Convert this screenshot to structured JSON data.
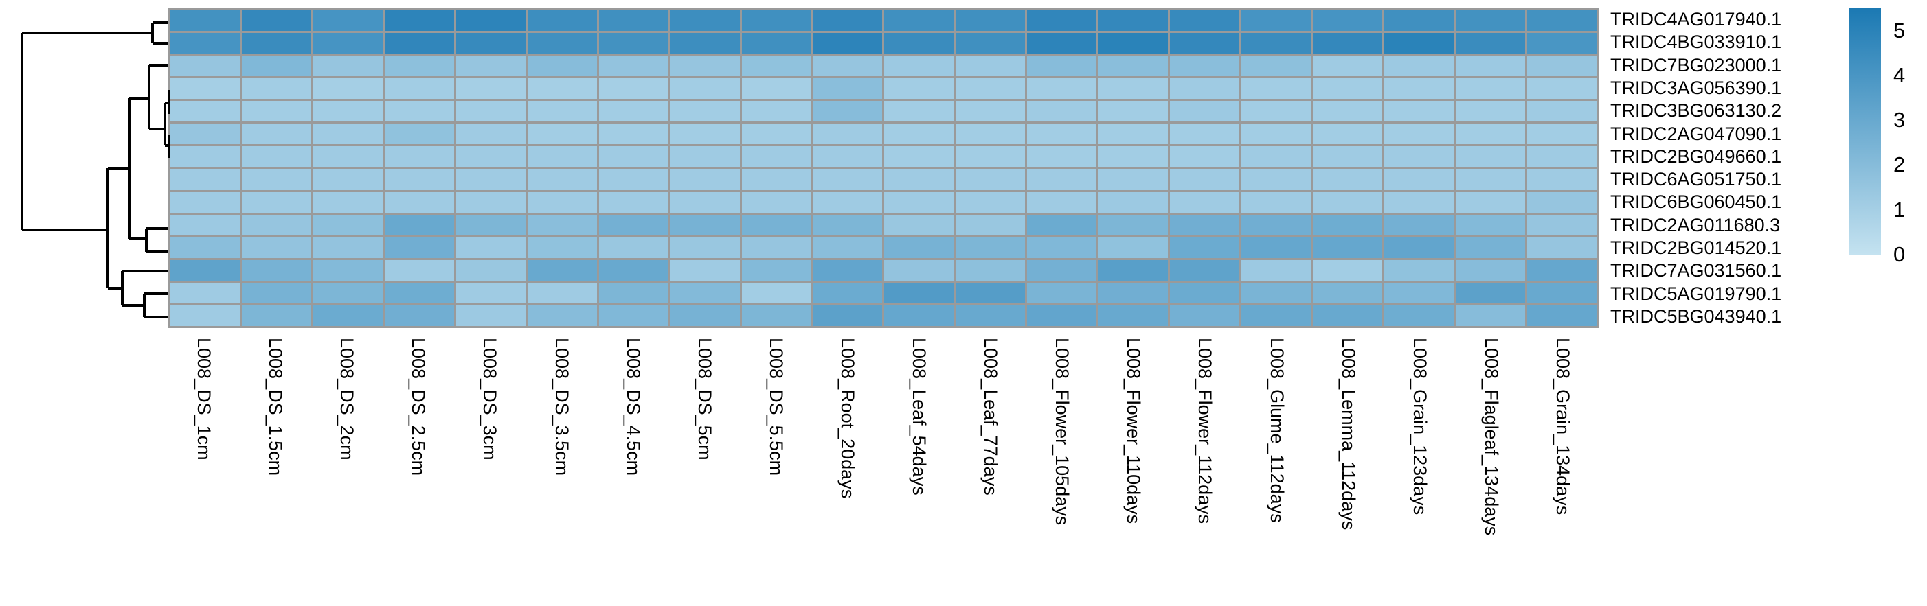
{
  "figure": {
    "background": "#ffffff",
    "grid_color": "#9a9a9a",
    "dendrogram_color": "#000000"
  },
  "chart_data": {
    "type": "heatmap",
    "title": "",
    "xlabel": "",
    "ylabel": "",
    "legend_position": "right",
    "grid": true,
    "rows": [
      "TRIDC4AG017940.1",
      "TRIDC4BG033910.1",
      "TRIDC7BG023000.1",
      "TRIDC3AG056390.1",
      "TRIDC3BG063130.2",
      "TRIDC2AG047090.1",
      "TRIDC2BG049660.1",
      "TRIDC6AG051750.1",
      "TRIDC6BG060450.1",
      "TRIDC2AG011680.3",
      "TRIDC2BG014520.1",
      "TRIDC7AG031560.1",
      "TRIDC5AG019790.1",
      "TRIDC5BG043940.1"
    ],
    "columns": [
      "L008_DS_1cm",
      "L008_DS_1.5cm",
      "L008_DS_2cm",
      "L008_DS_2.5cm",
      "L008_DS_3cm",
      "L008_DS_3.5cm",
      "L008_DS_4.5cm",
      "L008_DS_5cm",
      "L008_DS_5.5cm",
      "L008_Root_20days",
      "L008_Leaf_54days",
      "L008_Leaf_77days",
      "L008_Flower_105days",
      "L008_Flower_110days",
      "L008_Flower_112days",
      "L008_Glume_112days",
      "L008_Lemma_112days",
      "L008_Grain_123days",
      "L008_Flagleaf_134days",
      "L008_Grain_134days"
    ],
    "matrix": [
      [
        4.2,
        4.7,
        4.1,
        4.9,
        4.9,
        4.4,
        4.3,
        4.4,
        4.3,
        4.7,
        4.3,
        4.3,
        4.8,
        4.7,
        4.6,
        4.1,
        4.1,
        4.3,
        4.2,
        4.2
      ],
      [
        4.1,
        4.5,
        4.1,
        4.8,
        4.6,
        4.3,
        4.2,
        4.4,
        4.3,
        4.9,
        4.5,
        4.3,
        4.9,
        5.0,
        4.7,
        4.5,
        4.7,
        5.0,
        4.5,
        4.0
      ],
      [
        1.5,
        2.2,
        1.5,
        1.8,
        1.5,
        2.0,
        1.6,
        1.5,
        1.7,
        1.5,
        1.3,
        1.3,
        2.0,
        1.9,
        1.9,
        1.8,
        1.2,
        1.3,
        1.3,
        1.5
      ],
      [
        1.0,
        1.1,
        1.0,
        1.1,
        1.0,
        1.0,
        1.0,
        1.1,
        1.0,
        1.9,
        1.1,
        1.1,
        1.1,
        1.1,
        1.2,
        1.1,
        1.1,
        1.1,
        1.1,
        1.1
      ],
      [
        1.1,
        1.1,
        1.1,
        1.1,
        1.1,
        1.1,
        1.1,
        1.1,
        1.1,
        2.0,
        1.1,
        1.1,
        1.2,
        1.1,
        1.3,
        1.1,
        1.1,
        1.1,
        1.1,
        1.2
      ],
      [
        1.5,
        1.2,
        1.2,
        1.7,
        1.2,
        1.1,
        1.1,
        1.1,
        1.1,
        1.2,
        1.1,
        1.1,
        1.1,
        1.1,
        1.1,
        1.1,
        1.1,
        1.1,
        1.1,
        1.1
      ],
      [
        1.2,
        1.2,
        1.2,
        1.2,
        1.2,
        1.2,
        1.2,
        1.2,
        1.2,
        1.2,
        1.1,
        1.1,
        1.1,
        1.1,
        1.1,
        1.2,
        1.2,
        1.2,
        1.2,
        1.2
      ],
      [
        1.2,
        1.2,
        1.2,
        1.2,
        1.2,
        1.2,
        1.2,
        1.2,
        1.2,
        1.2,
        1.2,
        1.2,
        1.2,
        1.2,
        1.2,
        1.2,
        1.2,
        1.2,
        1.2,
        1.2
      ],
      [
        1.2,
        1.2,
        1.2,
        1.2,
        1.2,
        1.2,
        1.2,
        1.2,
        1.2,
        1.2,
        1.2,
        1.2,
        1.2,
        1.3,
        1.2,
        1.2,
        1.2,
        1.2,
        1.2,
        1.5
      ],
      [
        1.3,
        1.5,
        1.8,
        3.0,
        2.3,
        1.9,
        2.6,
        2.5,
        2.5,
        2.3,
        1.4,
        1.4,
        2.9,
        2.3,
        2.7,
        2.7,
        2.8,
        2.6,
        2.1,
        1.5
      ],
      [
        1.9,
        1.6,
        1.6,
        2.7,
        1.3,
        1.7,
        1.4,
        1.4,
        1.5,
        1.9,
        2.5,
        2.3,
        2.2,
        1.7,
        2.9,
        3.1,
        3.1,
        3.2,
        2.5,
        1.5
      ],
      [
        3.3,
        2.5,
        2.1,
        1.2,
        1.4,
        3.0,
        3.0,
        1.2,
        2.1,
        3.2,
        1.6,
        1.8,
        2.6,
        3.5,
        3.3,
        1.3,
        1.1,
        1.7,
        2.0,
        3.1
      ],
      [
        1.2,
        2.5,
        2.3,
        2.8,
        1.2,
        1.2,
        2.3,
        2.1,
        1.1,
        2.9,
        3.7,
        3.6,
        2.4,
        2.7,
        2.9,
        2.4,
        2.3,
        2.2,
        3.4,
        3.0
      ],
      [
        1.2,
        2.3,
        2.9,
        2.7,
        1.3,
        2.0,
        2.2,
        2.5,
        2.3,
        3.4,
        3.1,
        3.0,
        3.2,
        3.0,
        2.6,
        3.0,
        3.0,
        2.8,
        2.0,
        3.1
      ]
    ],
    "value_range": [
      0,
      5.5
    ],
    "colorbar": {
      "ticks": [
        0,
        1,
        2,
        3,
        4,
        5
      ],
      "min_color": "#c4e2f0",
      "max_color": "#1b79b3"
    },
    "dendrogram": {
      "side": "left",
      "segments": [
        [
          222,
          33,
          222,
          63
        ],
        [
          222,
          33,
          245,
          33
        ],
        [
          222,
          63,
          245,
          63
        ],
        [
          32,
          48,
          222,
          48
        ],
        [
          32,
          48,
          32,
          335
        ],
        [
          32,
          335,
          157,
          335
        ],
        [
          157,
          245,
          157,
          420
        ],
        [
          157,
          245,
          188,
          245
        ],
        [
          157,
          420,
          178,
          420
        ],
        [
          188,
          143,
          188,
          348
        ],
        [
          188,
          143,
          217,
          143
        ],
        [
          188,
          348,
          213,
          348
        ],
        [
          217,
          95,
          217,
          188
        ],
        [
          217,
          95,
          245,
          95
        ],
        [
          217,
          188,
          240,
          188
        ],
        [
          240,
          150,
          240,
          212
        ],
        [
          240,
          150,
          246,
          150
        ],
        [
          240,
          212,
          246,
          212
        ],
        [
          246,
          131,
          246,
          166
        ],
        [
          246,
          197,
          246,
          230
        ],
        [
          213,
          333,
          213,
          367
        ],
        [
          213,
          333,
          245,
          333
        ],
        [
          213,
          367,
          245,
          367
        ],
        [
          178,
          395,
          178,
          445
        ],
        [
          178,
          395,
          245,
          395
        ],
        [
          178,
          445,
          210,
          445
        ],
        [
          210,
          428,
          210,
          462
        ],
        [
          210,
          428,
          245,
          428
        ],
        [
          210,
          462,
          245,
          462
        ]
      ]
    }
  }
}
